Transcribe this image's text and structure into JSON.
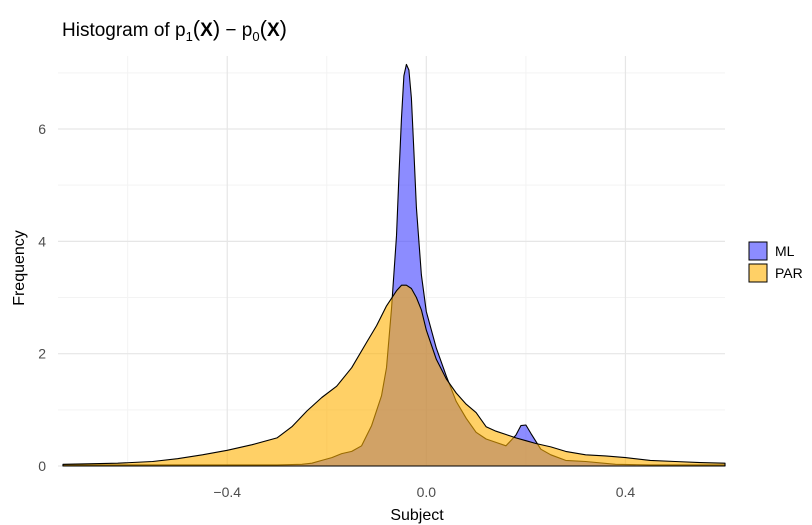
{
  "chart_data": {
    "type": "area",
    "title": {
      "prefix": "Histogram of ",
      "p1": "p",
      "p1_sub": "1",
      "x_open": "(",
      "x_bold": "X",
      "x_close": ")",
      "minus": " − ",
      "p0": "p",
      "p0_sub": "0"
    },
    "xlabel": "Subject",
    "ylabel": "Frequency",
    "xlim": [
      -0.74,
      0.6
    ],
    "ylim": [
      0,
      7.3
    ],
    "xticks": [
      -0.4,
      0.0,
      0.4
    ],
    "xtick_labels": [
      "−0.4",
      "0.0",
      "0.4"
    ],
    "xgrid_minor": [
      -0.6,
      -0.2,
      0.2
    ],
    "yticks": [
      0,
      2,
      4,
      6
    ],
    "ytick_labels": [
      "0",
      "2",
      "4",
      "6"
    ],
    "ygrid_minor": [
      1,
      3,
      5,
      7
    ],
    "grid": true,
    "legend_position": "right",
    "series": [
      {
        "name": "ML",
        "color": "#4040ff",
        "points": [
          [
            -0.73,
            0.02
          ],
          [
            -0.6,
            0.02
          ],
          [
            -0.5,
            0.02
          ],
          [
            -0.4,
            0.02
          ],
          [
            -0.35,
            0.02
          ],
          [
            -0.3,
            0.02
          ],
          [
            -0.25,
            0.03
          ],
          [
            -0.23,
            0.05
          ],
          [
            -0.21,
            0.1
          ],
          [
            -0.19,
            0.15
          ],
          [
            -0.17,
            0.22
          ],
          [
            -0.15,
            0.26
          ],
          [
            -0.13,
            0.36
          ],
          [
            -0.11,
            0.72
          ],
          [
            -0.09,
            1.25
          ],
          [
            -0.08,
            1.75
          ],
          [
            -0.07,
            2.8
          ],
          [
            -0.06,
            4.1
          ],
          [
            -0.055,
            5.2
          ],
          [
            -0.05,
            6.2
          ],
          [
            -0.045,
            6.95
          ],
          [
            -0.04,
            7.15
          ],
          [
            -0.035,
            7.05
          ],
          [
            -0.03,
            6.55
          ],
          [
            -0.025,
            5.6
          ],
          [
            -0.02,
            4.6
          ],
          [
            -0.01,
            3.4
          ],
          [
            0.0,
            2.75
          ],
          [
            0.02,
            2.1
          ],
          [
            0.04,
            1.6
          ],
          [
            0.06,
            1.15
          ],
          [
            0.08,
            0.85
          ],
          [
            0.1,
            0.6
          ],
          [
            0.12,
            0.48
          ],
          [
            0.14,
            0.42
          ],
          [
            0.16,
            0.36
          ],
          [
            0.18,
            0.55
          ],
          [
            0.19,
            0.72
          ],
          [
            0.2,
            0.73
          ],
          [
            0.21,
            0.58
          ],
          [
            0.23,
            0.3
          ],
          [
            0.25,
            0.2
          ],
          [
            0.28,
            0.1
          ],
          [
            0.32,
            0.08
          ],
          [
            0.38,
            0.03
          ],
          [
            0.45,
            0.02
          ],
          [
            0.6,
            0.02
          ]
        ]
      },
      {
        "name": "PAR",
        "color": "#ffb000",
        "points": [
          [
            -0.73,
            0.03
          ],
          [
            -0.68,
            0.04
          ],
          [
            -0.62,
            0.05
          ],
          [
            -0.55,
            0.08
          ],
          [
            -0.5,
            0.13
          ],
          [
            -0.45,
            0.2
          ],
          [
            -0.4,
            0.28
          ],
          [
            -0.35,
            0.38
          ],
          [
            -0.3,
            0.5
          ],
          [
            -0.27,
            0.7
          ],
          [
            -0.24,
            0.98
          ],
          [
            -0.21,
            1.22
          ],
          [
            -0.18,
            1.42
          ],
          [
            -0.15,
            1.75
          ],
          [
            -0.12,
            2.2
          ],
          [
            -0.1,
            2.5
          ],
          [
            -0.08,
            2.85
          ],
          [
            -0.06,
            3.12
          ],
          [
            -0.05,
            3.22
          ],
          [
            -0.04,
            3.22
          ],
          [
            -0.03,
            3.16
          ],
          [
            -0.02,
            3.0
          ],
          [
            -0.01,
            2.78
          ],
          [
            0.0,
            2.42
          ],
          [
            0.02,
            1.9
          ],
          [
            0.04,
            1.55
          ],
          [
            0.06,
            1.3
          ],
          [
            0.08,
            1.1
          ],
          [
            0.1,
            0.95
          ],
          [
            0.12,
            0.7
          ],
          [
            0.14,
            0.62
          ],
          [
            0.16,
            0.56
          ],
          [
            0.18,
            0.5
          ],
          [
            0.2,
            0.45
          ],
          [
            0.22,
            0.4
          ],
          [
            0.25,
            0.34
          ],
          [
            0.28,
            0.26
          ],
          [
            0.32,
            0.2
          ],
          [
            0.36,
            0.18
          ],
          [
            0.4,
            0.15
          ],
          [
            0.45,
            0.1
          ],
          [
            0.5,
            0.08
          ],
          [
            0.55,
            0.06
          ],
          [
            0.6,
            0.05
          ]
        ]
      }
    ]
  }
}
